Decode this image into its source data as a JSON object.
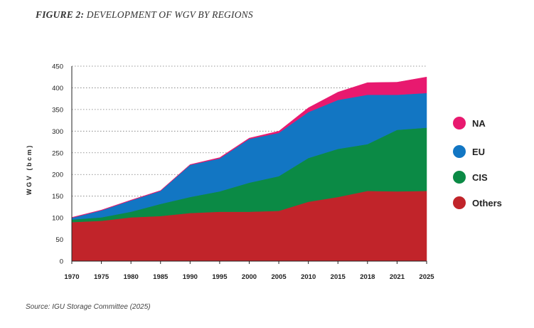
{
  "figure": {
    "number": "FIGURE 2:",
    "caption": "DEVELOPMENT OF WGV BY REGIONS",
    "source": "Source: IGU Storage Committee (2025)"
  },
  "chart_data": {
    "type": "area",
    "stacked": true,
    "title": "FIGURE 2: DEVELOPMENT OF WGV BY REGIONS",
    "xlabel": "",
    "ylabel": "WGV (bcm)",
    "ylim": [
      0,
      450
    ],
    "yticks": [
      0,
      50,
      100,
      150,
      200,
      250,
      300,
      350,
      400,
      450
    ],
    "categories": [
      "1970",
      "1975",
      "1980",
      "1985",
      "1990",
      "1995",
      "2000",
      "2005",
      "2010",
      "2015",
      "2018",
      "2021",
      "2025"
    ],
    "grid": "horizontal-dotted",
    "legend_position": "right",
    "series": [
      {
        "name": "Others",
        "color": "#c1242a",
        "values": [
          90,
          93,
          101,
          104,
          111,
          114,
          114,
          116,
          137,
          148,
          162,
          161,
          162
        ]
      },
      {
        "name": "CIS",
        "color": "#0b8a45",
        "values": [
          6,
          8,
          13,
          28,
          37,
          47,
          67,
          80,
          101,
          111,
          108,
          142,
          146
        ]
      },
      {
        "name": "EU",
        "color": "#1276c3",
        "values": [
          4,
          16,
          26,
          30,
          74,
          76,
          101,
          100,
          106,
          113,
          114,
          81,
          80
        ]
      },
      {
        "name": "NA",
        "color": "#e8196f",
        "values": [
          1,
          1,
          1,
          1,
          1,
          2,
          2,
          4,
          10,
          18,
          28,
          29,
          37
        ]
      }
    ]
  }
}
